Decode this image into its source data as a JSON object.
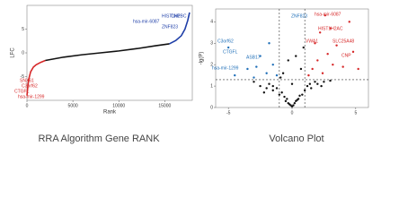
{
  "chart_data": [
    {
      "type": "line",
      "caption": "RRA Algorithm Gene RANK",
      "xlabel": "Rank",
      "ylabel": "LFC",
      "xlim": [
        0,
        18000
      ],
      "ylim": [
        -10,
        10
      ],
      "xticks": [
        0,
        5000,
        10000,
        15000
      ],
      "yticks": [
        -5,
        0,
        5
      ],
      "series": [
        {
          "color": "#d62728",
          "x": [
            0,
            100,
            200,
            400,
            700,
            1000,
            1500,
            2000
          ],
          "values": [
            -9,
            -7,
            -5.5,
            -4,
            -3,
            -2.5,
            -2,
            -1.6
          ]
        },
        {
          "color": "#111111",
          "x": [
            2000,
            4000,
            6000,
            8000,
            10000,
            12000,
            14000,
            15500
          ],
          "values": [
            -1.6,
            -0.9,
            -0.4,
            0,
            0.4,
            0.9,
            1.5,
            1.9
          ]
        },
        {
          "color": "#1f3fa8",
          "x": [
            15500,
            16200,
            16800,
            17200,
            17500,
            17700
          ],
          "values": [
            1.9,
            2.6,
            3.6,
            5,
            6.8,
            8.5
          ]
        }
      ],
      "annotations": [
        {
          "text": "HIST1H2BC",
          "color": "#1f3fa8"
        },
        {
          "text": "hsa-mir-6087",
          "color": "#1f3fa8"
        },
        {
          "text": "ZNF823",
          "color": "#1f3fa8"
        },
        {
          "text": "CNP",
          "color": "#1f3fa8"
        },
        {
          "text": "SNX61",
          "color": "#d62728"
        },
        {
          "text": "C3orf62",
          "color": "#d62728"
        },
        {
          "text": "CTGFL",
          "color": "#d62728"
        },
        {
          "text": "hsa-mir-1299",
          "color": "#d62728"
        }
      ]
    },
    {
      "type": "scatter",
      "caption": "Volcano Plot",
      "ylabel": "-lg(P)",
      "xlim": [
        -6,
        6
      ],
      "ylim": [
        0,
        4.6
      ],
      "xticks": [
        -5,
        0,
        5
      ],
      "yticks": [
        0,
        1,
        2,
        3,
        4
      ],
      "thresholds": {
        "x": [
          -1,
          1
        ],
        "y": 1.3
      },
      "series": [
        {
          "color": "#111111",
          "x": [
            -3,
            -2.5,
            -2,
            -1.8,
            -1.5,
            -1.2,
            -1,
            -0.8,
            -0.6,
            -0.5,
            -0.4,
            -0.3,
            -0.2,
            -0.1,
            0,
            0.1,
            0.2,
            0.3,
            0.4,
            0.5,
            0.6,
            0.8,
            1,
            1.2,
            1.5,
            1.8,
            2,
            2.5,
            3,
            -0.7,
            0.7,
            -0.3,
            0.3,
            0,
            -1.5,
            1.4,
            -2.2,
            2.3,
            -0.9,
            0.9
          ],
          "values": [
            1.2,
            1.0,
            0.9,
            1.1,
            0.8,
            0.9,
            0.6,
            0.7,
            0.5,
            0.3,
            0.4,
            0.2,
            0.15,
            0.1,
            0.05,
            0.1,
            0.2,
            0.3,
            0.35,
            0.4,
            0.55,
            0.6,
            0.8,
            1.0,
            0.9,
            1.2,
            1.1,
            1.2,
            1.25,
            1.6,
            1.8,
            2.2,
            2.4,
            1.1,
            1.0,
            1.1,
            0.7,
            1.0,
            1.4,
            2.8
          ]
        },
        {
          "color": "#d62728",
          "x": [
            1.3,
            1.6,
            2,
            2.4,
            2.8,
            3,
            3.5,
            4,
            4.5,
            1.8,
            2.2,
            3.2,
            4.8,
            5.2,
            2.6
          ],
          "values": [
            1.5,
            1.8,
            2.2,
            1.6,
            2.5,
            3.7,
            2.9,
            1.9,
            4.0,
            3.0,
            3.5,
            2.0,
            2.6,
            1.8,
            4.3
          ]
        },
        {
          "color": "#1f6fb8",
          "x": [
            -1.2,
            -1.5,
            -2,
            -2.5,
            -3,
            -3.5,
            -4.5,
            -5,
            -1.8,
            -2.8
          ],
          "values": [
            1.5,
            2.0,
            1.6,
            2.4,
            1.4,
            1.8,
            1.5,
            2.8,
            3.0,
            1.9
          ]
        }
      ],
      "annotations": [
        {
          "text": "ZNF823",
          "color": "#1f6fb8"
        },
        {
          "text": "C3orf62",
          "color": "#1f6fb8"
        },
        {
          "text": "CTGFL",
          "color": "#1f6fb8"
        },
        {
          "text": "ASB17",
          "color": "#1f6fb8"
        },
        {
          "text": "hsa-mir-1299",
          "color": "#1f6fb8"
        },
        {
          "text": "hsa-mir-6087",
          "color": "#d62728"
        },
        {
          "text": "HIST1H2AC",
          "color": "#d62728"
        },
        {
          "text": "VWA1",
          "color": "#d62728"
        },
        {
          "text": "SLC25A48",
          "color": "#d62728"
        },
        {
          "text": "CNP",
          "color": "#d62728"
        }
      ]
    }
  ]
}
